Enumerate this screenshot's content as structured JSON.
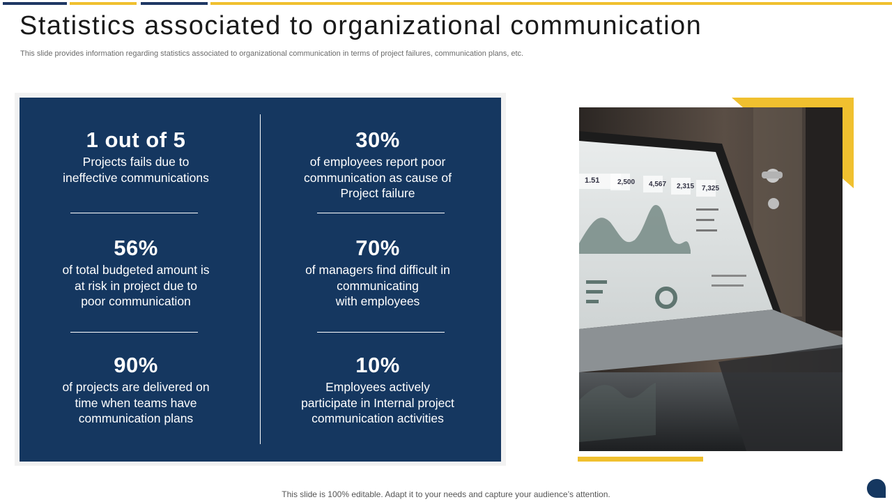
{
  "slide": {
    "title": "Statistics associated to organizational communication",
    "subtitle": "This slide provides information regarding statistics associated to organizational communication in terms of project failures, communication plans, etc.",
    "footer": "This slide is 100% editable. Adapt it to your needs and capture your audience’s attention."
  },
  "stats": [
    {
      "value": "1 out of 5",
      "text": "Projects fails due to\nineffective communications"
    },
    {
      "value": "30%",
      "text": "of employees report poor\ncommunication as cause of\nProject failure"
    },
    {
      "value": "56%",
      "text": "of total budgeted amount is\nat risk in project due to\npoor communication"
    },
    {
      "value": "70%",
      "text": "of managers find difficult in\ncommunicating\nwith employees"
    },
    {
      "value": "90%",
      "text": "of projects are delivered on\ntime when teams have\ncommunication plans"
    },
    {
      "value": "10%",
      "text": "Employees actively\nparticipate in Internal project\ncommunication activities"
    }
  ],
  "photo": {
    "dashboard_figures": [
      "1.51",
      "2,500",
      "4,567",
      "2,315",
      "7,325"
    ]
  },
  "colors": {
    "navy": "#153760",
    "accent_yellow": "#f0c02f",
    "title_text": "#1a1a1a"
  },
  "icons": {
    "chat": "chat-bubble-icon"
  }
}
